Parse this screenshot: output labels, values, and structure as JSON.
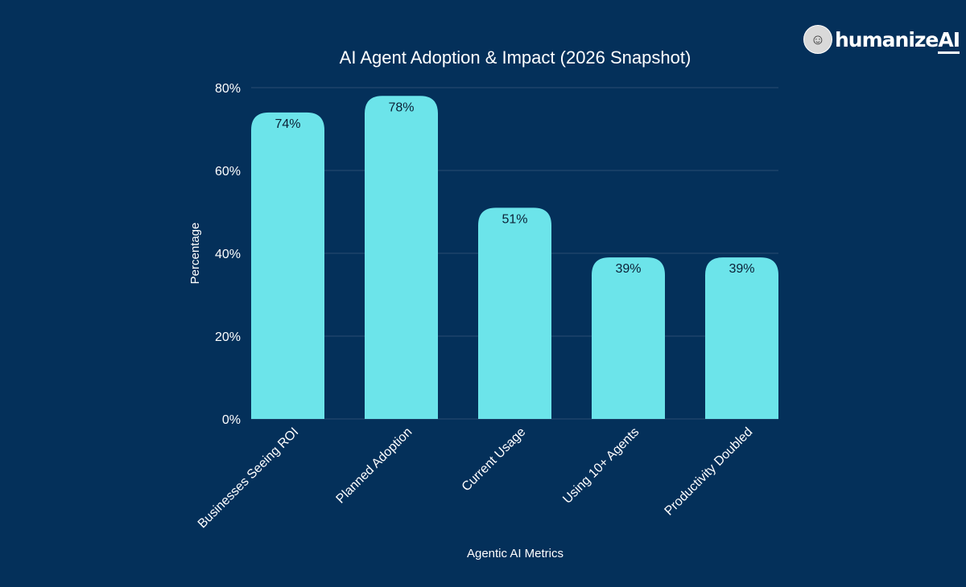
{
  "brand": {
    "name": "humanize",
    "suffix": "AI",
    "icon": "head-brain-icon"
  },
  "chart_data": {
    "type": "bar",
    "title": "AI Agent Adoption & Impact (2026 Snapshot)",
    "xlabel": "Agentic AI Metrics",
    "ylabel": "Percentage",
    "categories": [
      "Businesses Seeing ROI",
      "Planned Adoption",
      "Current Usage",
      "Using 10+ Agents",
      "Productivity Doubled"
    ],
    "values": [
      74,
      78,
      51,
      39,
      39
    ],
    "data_labels": [
      "74%",
      "78%",
      "51%",
      "39%",
      "39%"
    ],
    "ylim": [
      0,
      80
    ],
    "yticks": [
      0,
      20,
      40,
      60,
      80
    ],
    "ytick_labels": [
      "0%",
      "20%",
      "40%",
      "60%",
      "80%"
    ],
    "grid": true,
    "legend": "none",
    "colors": {
      "bar": "#6ce4ea",
      "background": "#04305a",
      "grid": "#2a4d72"
    }
  }
}
